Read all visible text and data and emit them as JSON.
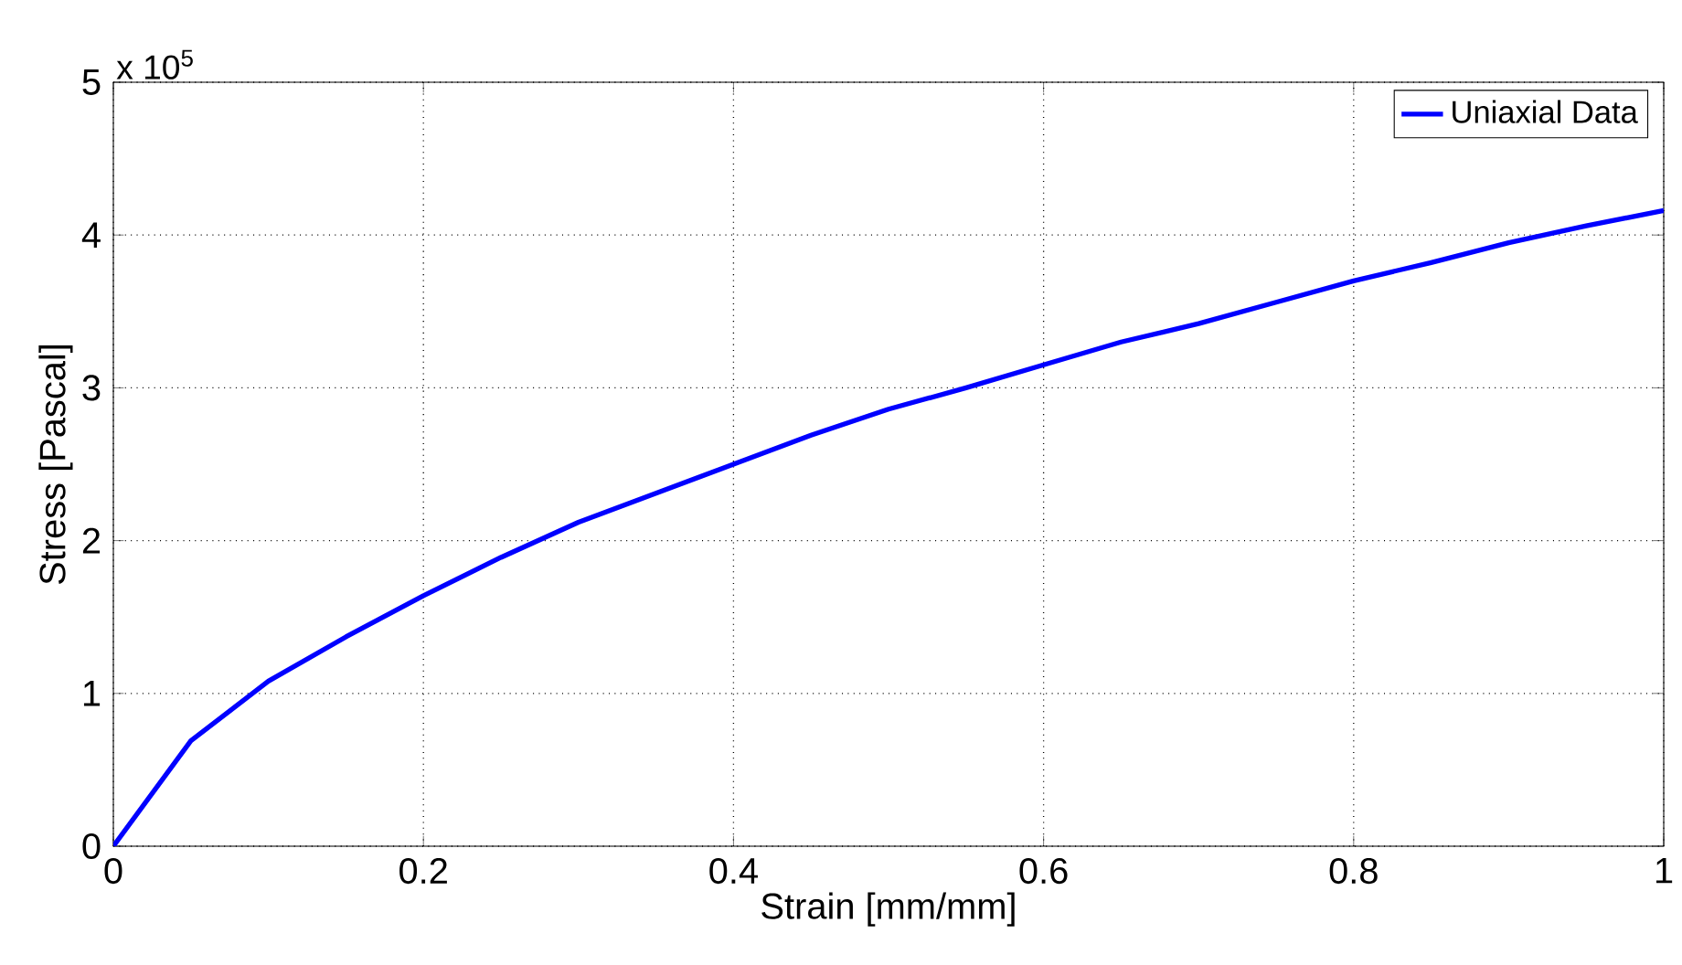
{
  "chart_data": {
    "type": "line",
    "xlabel": "Strain [mm/mm]",
    "ylabel": "Stress [Pascal]",
    "annotations": [
      "x 10$^{5}$"
    ],
    "x": [
      0,
      0.05,
      0.1,
      0.15,
      0.2,
      0.25,
      0.3,
      0.35,
      0.4,
      0.45,
      0.5,
      0.55,
      0.6,
      0.65,
      0.7,
      0.75,
      0.8,
      0.85,
      0.9,
      0.95,
      1.0
    ],
    "series": [
      {
        "name": "Uniaxial Data",
        "color": "#0000ff",
        "values": [
          0,
          0.69,
          1.08,
          1.37,
          1.64,
          1.89,
          2.12,
          2.31,
          2.5,
          2.69,
          2.86,
          3.0,
          3.15,
          3.3,
          3.42,
          3.56,
          3.7,
          3.82,
          3.95,
          4.06,
          4.16
        ]
      }
    ],
    "xlim": [
      0,
      1
    ],
    "ylim": [
      0,
      5
    ],
    "xticks": [
      0,
      0.2,
      0.4,
      0.6,
      0.8,
      1
    ],
    "yticks": [
      0,
      1,
      2,
      3,
      4,
      5
    ],
    "grid": true,
    "legend": "top right",
    "line_style": "solid",
    "marker": "none"
  }
}
